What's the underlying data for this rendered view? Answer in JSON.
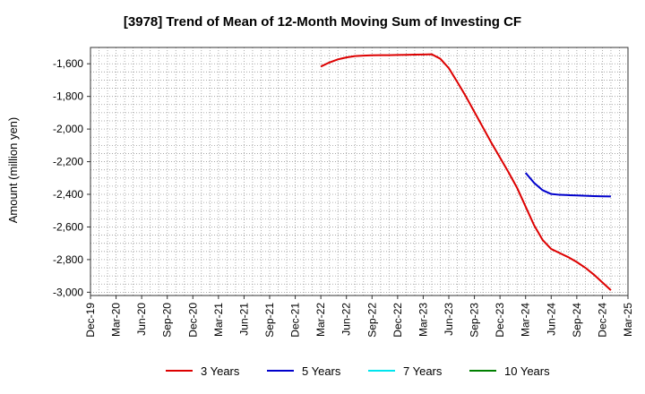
{
  "chart_data": {
    "type": "line",
    "title": "[3978]  Trend of Mean of 12-Month Moving Sum of Investing CF",
    "xlabel": "",
    "ylabel": "Amount (million yen)",
    "ylim": [
      -3020,
      -1500
    ],
    "yticks": [
      -1600,
      -1800,
      -2000,
      -2200,
      -2400,
      -2600,
      -2800,
      -3000
    ],
    "ytick_labels": [
      "-1,600",
      "-1,800",
      "-2,000",
      "-2,200",
      "-2,400",
      "-2,600",
      "-2,800",
      "-3,000"
    ],
    "x_categories": [
      "Dec-19",
      "Mar-20",
      "Jun-20",
      "Sep-20",
      "Dec-20",
      "Mar-21",
      "Jun-21",
      "Sep-21",
      "Dec-21",
      "Mar-22",
      "Jun-22",
      "Sep-22",
      "Dec-22",
      "Mar-23",
      "Jun-23",
      "Sep-23",
      "Dec-23",
      "Mar-24",
      "Jun-24",
      "Sep-24",
      "Dec-24",
      "Mar-25"
    ],
    "grid": true,
    "legend_position": "bottom",
    "series": [
      {
        "name": "3 Years",
        "color": "#dd0000",
        "points": [
          [
            27,
            -1617
          ],
          [
            28,
            -1592
          ],
          [
            29,
            -1573
          ],
          [
            30,
            -1561
          ],
          [
            31,
            -1553
          ],
          [
            32,
            -1550
          ],
          [
            33,
            -1548
          ],
          [
            34,
            -1547
          ],
          [
            35,
            -1547
          ],
          [
            36,
            -1546
          ],
          [
            37,
            -1545
          ],
          [
            38,
            -1544
          ],
          [
            39,
            -1543
          ],
          [
            40,
            -1542
          ],
          [
            41,
            -1569
          ],
          [
            42,
            -1627
          ],
          [
            43,
            -1712
          ],
          [
            44,
            -1800
          ],
          [
            45,
            -1895
          ],
          [
            46,
            -1990
          ],
          [
            47,
            -2085
          ],
          [
            48,
            -2175
          ],
          [
            49,
            -2265
          ],
          [
            50,
            -2360
          ],
          [
            51,
            -2475
          ],
          [
            52,
            -2590
          ],
          [
            53,
            -2680
          ],
          [
            54,
            -2735
          ],
          [
            55,
            -2760
          ],
          [
            56,
            -2785
          ],
          [
            57,
            -2815
          ],
          [
            58,
            -2850
          ],
          [
            59,
            -2892
          ],
          [
            60,
            -2940
          ],
          [
            61,
            -2988
          ]
        ]
      },
      {
        "name": "5 Years",
        "color": "#0000cc",
        "points": [
          [
            51,
            -2268
          ],
          [
            52,
            -2330
          ],
          [
            53,
            -2375
          ],
          [
            54,
            -2398
          ],
          [
            55,
            -2403
          ],
          [
            56,
            -2405
          ],
          [
            57,
            -2407
          ],
          [
            58,
            -2409
          ],
          [
            59,
            -2411
          ],
          [
            60,
            -2412
          ],
          [
            61,
            -2413
          ]
        ]
      },
      {
        "name": "7 Years",
        "color": "#00e5ee",
        "points": []
      },
      {
        "name": "10 Years",
        "color": "#008000",
        "points": []
      }
    ]
  }
}
